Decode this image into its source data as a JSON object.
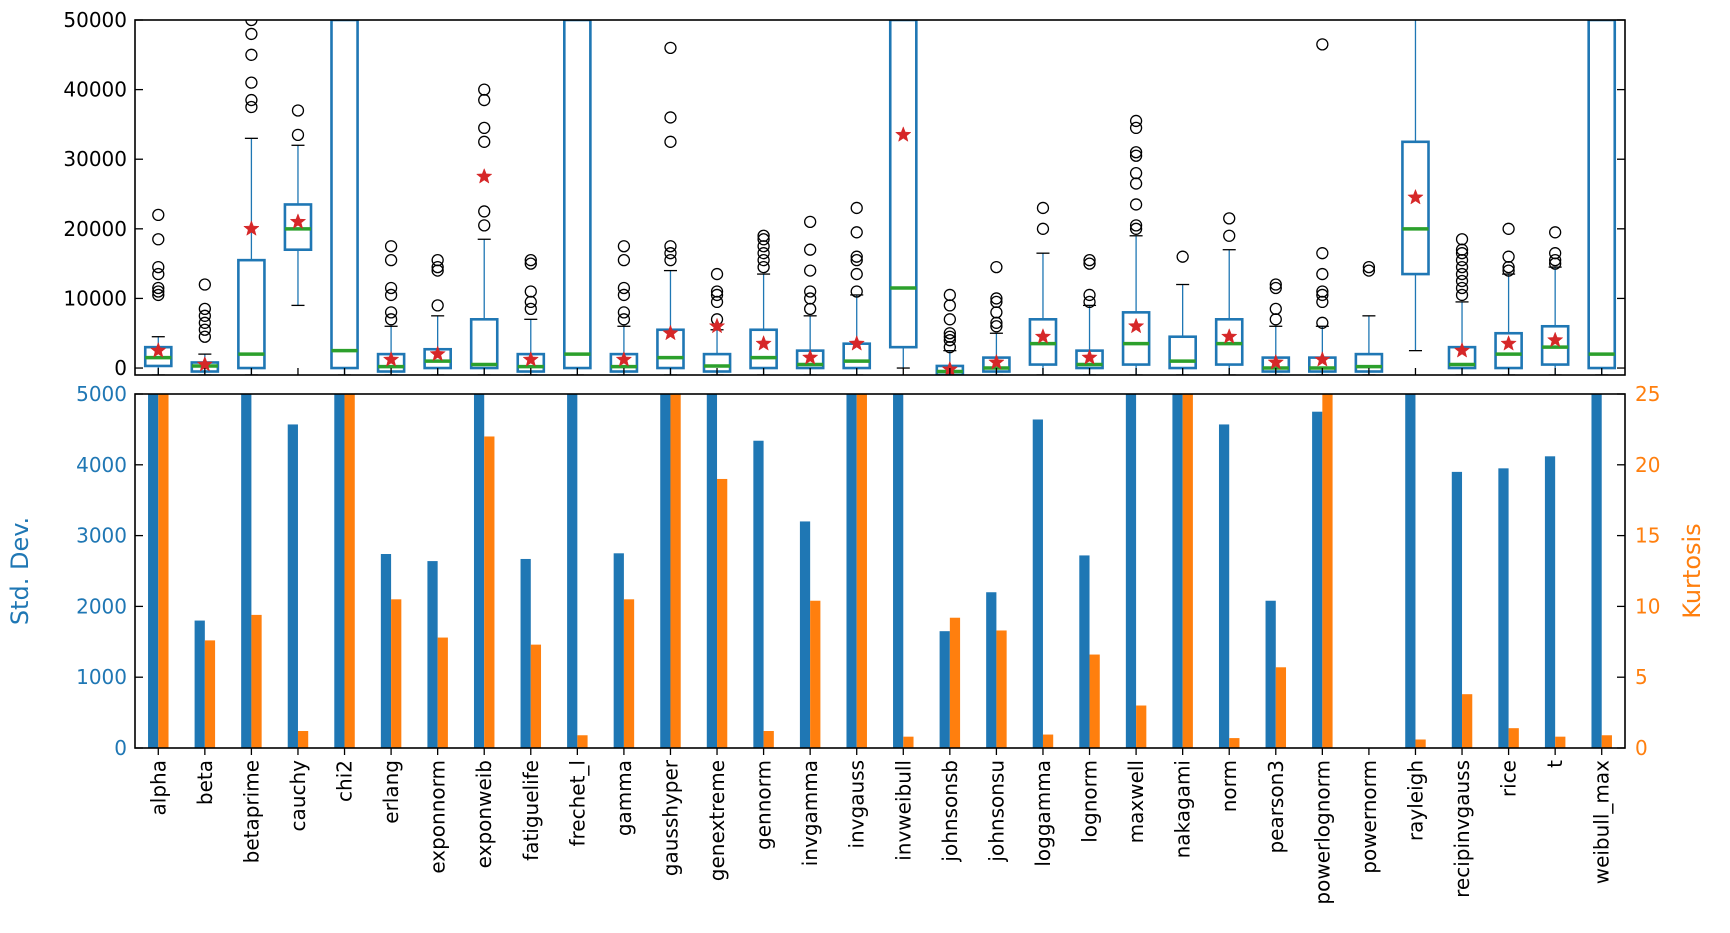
{
  "chart_data": [
    {
      "type": "box",
      "title": "",
      "ylim": [
        -1000,
        50000
      ],
      "yticks": [
        0,
        10000,
        20000,
        30000,
        40000,
        50000
      ],
      "ytick_labels": [
        "0",
        "10000",
        "20000",
        "30000",
        "40000",
        "50000"
      ],
      "colors": {
        "box": "#1f77b4",
        "median": "#2ca02c",
        "mean": "#d62728",
        "flier": "#000000"
      },
      "boxes": [
        {
          "name": "alpha",
          "min": -1000,
          "q1": 300,
          "median": 1500,
          "q3": 3000,
          "max": 4500,
          "mean": 2500,
          "fliers": [
            10500,
            11000,
            11500,
            13500,
            14500,
            18500,
            22000
          ]
        },
        {
          "name": "beta",
          "min": -1000,
          "q1": -500,
          "median": 300,
          "q3": 800,
          "max": 2000,
          "mean": 500,
          "fliers": [
            4500,
            5500,
            6500,
            7500,
            8500,
            12000
          ]
        },
        {
          "name": "betaprime",
          "min": -1000,
          "q1": 0,
          "median": 2000,
          "q3": 15500,
          "max": 33000,
          "mean": 20000,
          "fliers": [
            37500,
            38500,
            41000,
            45000,
            48000,
            50000
          ]
        },
        {
          "name": "cauchy",
          "min": 9000,
          "q1": 17000,
          "median": 20000,
          "q3": 23500,
          "max": 32000,
          "mean": 21000,
          "fliers": [
            33500,
            37000
          ]
        },
        {
          "name": "chi2",
          "min": -1000,
          "q1": 0,
          "median": 2500,
          "q3": 50000,
          "max": 50000,
          "mean": null,
          "fliers": []
        },
        {
          "name": "erlang",
          "min": -1000,
          "q1": -500,
          "median": 200,
          "q3": 2000,
          "max": 6000,
          "mean": 1200,
          "fliers": [
            7000,
            8000,
            10500,
            11500,
            15500,
            17500
          ]
        },
        {
          "name": "exponnorm",
          "min": -1000,
          "q1": 0,
          "median": 1000,
          "q3": 2700,
          "max": 7500,
          "mean": 2000,
          "fliers": [
            9000,
            14000,
            14500,
            15500
          ]
        },
        {
          "name": "exponweib",
          "min": -1000,
          "q1": 0,
          "median": 500,
          "q3": 7000,
          "max": 18500,
          "mean": 27500,
          "fliers": [
            20500,
            22500,
            32500,
            34500,
            38500,
            40000
          ]
        },
        {
          "name": "fatiguelife",
          "min": -1000,
          "q1": -500,
          "median": 200,
          "q3": 2000,
          "max": 7000,
          "mean": 1200,
          "fliers": [
            8500,
            9500,
            11000,
            15000,
            15500
          ]
        },
        {
          "name": "frechet_l",
          "min": -1000,
          "q1": 0,
          "median": 2000,
          "q3": 50000,
          "max": 50000,
          "mean": null,
          "fliers": []
        },
        {
          "name": "gamma",
          "min": -1000,
          "q1": -500,
          "median": 200,
          "q3": 2000,
          "max": 6000,
          "mean": 1200,
          "fliers": [
            7000,
            8000,
            10500,
            11500,
            15500,
            17500
          ]
        },
        {
          "name": "gausshyper",
          "min": -1000,
          "q1": 0,
          "median": 1500,
          "q3": 5500,
          "max": 14000,
          "mean": 5000,
          "fliers": [
            15500,
            16500,
            17500,
            32500,
            36000,
            46000
          ]
        },
        {
          "name": "genextreme",
          "min": -1000,
          "q1": -500,
          "median": 300,
          "q3": 2000,
          "max": 5500,
          "mean": 6000,
          "fliers": [
            7000,
            9500,
            10500,
            11000,
            13500
          ]
        },
        {
          "name": "gennorm",
          "min": -1000,
          "q1": 0,
          "median": 1500,
          "q3": 5500,
          "max": 13500,
          "mean": 3500,
          "fliers": [
            14500,
            15500,
            16500,
            17500,
            18500,
            19000
          ]
        },
        {
          "name": "invgamma",
          "min": -1000,
          "q1": 0,
          "median": 500,
          "q3": 2500,
          "max": 7500,
          "mean": 1500,
          "fliers": [
            8500,
            10000,
            11000,
            14000,
            17000,
            21000
          ]
        },
        {
          "name": "invgauss",
          "min": -1000,
          "q1": 0,
          "median": 1000,
          "q3": 3500,
          "max": 10500,
          "mean": 3500,
          "fliers": [
            11000,
            13500,
            15500,
            16000,
            19500,
            23000
          ]
        },
        {
          "name": "invweibull",
          "min": 0,
          "q1": 3000,
          "median": 11500,
          "q3": 50000,
          "max": 50000,
          "mean": 33500,
          "fliers": []
        },
        {
          "name": "johnsonsb",
          "min": -1000,
          "q1": -1000,
          "median": -500,
          "q3": 300,
          "max": 2500,
          "mean": -200,
          "fliers": [
            3000,
            4000,
            4500,
            5000,
            7000,
            9000,
            10500
          ]
        },
        {
          "name": "johnsonsu",
          "min": -1000,
          "q1": -500,
          "median": 0,
          "q3": 1500,
          "max": 5000,
          "mean": 800,
          "fliers": [
            6000,
            6500,
            8000,
            9500,
            10000,
            14500
          ]
        },
        {
          "name": "loggamma",
          "min": -1000,
          "q1": 500,
          "median": 3500,
          "q3": 7000,
          "max": 16500,
          "mean": 4500,
          "fliers": [
            20000,
            23000
          ]
        },
        {
          "name": "lognorm",
          "min": -1000,
          "q1": 0,
          "median": 500,
          "q3": 2500,
          "max": 9000,
          "mean": 1500,
          "fliers": [
            9500,
            10500,
            15000,
            15500
          ]
        },
        {
          "name": "maxwell",
          "min": -1000,
          "q1": 500,
          "median": 3500,
          "q3": 8000,
          "max": 19000,
          "mean": 6000,
          "fliers": [
            20000,
            20500,
            23500,
            26500,
            28000,
            30500,
            31000,
            34500,
            35500
          ]
        },
        {
          "name": "nakagami",
          "min": -1000,
          "q1": 0,
          "median": 1000,
          "q3": 4500,
          "max": 12000,
          "mean": null,
          "fliers": [
            16000
          ]
        },
        {
          "name": "norm",
          "min": -1000,
          "q1": 500,
          "median": 3500,
          "q3": 7000,
          "max": 17000,
          "mean": 4500,
          "fliers": [
            19000,
            21500
          ]
        },
        {
          "name": "pearson3",
          "min": -1000,
          "q1": -500,
          "median": 0,
          "q3": 1500,
          "max": 6000,
          "mean": 800,
          "fliers": [
            7000,
            8500,
            11500,
            12000
          ]
        },
        {
          "name": "powerlognorm",
          "min": -1000,
          "q1": -500,
          "median": 0,
          "q3": 1500,
          "max": 6000,
          "mean": 1200,
          "fliers": [
            6500,
            9500,
            10500,
            11000,
            13500,
            16500,
            46500
          ]
        },
        {
          "name": "powernorm",
          "min": -1000,
          "q1": -500,
          "median": 200,
          "q3": 2000,
          "max": 7500,
          "mean": null,
          "fliers": [
            14000,
            14500
          ]
        },
        {
          "name": "rayleigh",
          "min": 2500,
          "q1": 13500,
          "median": 20000,
          "q3": 32500,
          "max": 50000,
          "mean": 24500,
          "fliers": []
        },
        {
          "name": "recipinvgauss",
          "min": -1000,
          "q1": 0,
          "median": 500,
          "q3": 3000,
          "max": 9500,
          "mean": 2500,
          "fliers": [
            10500,
            11500,
            12500,
            13500,
            14500,
            15500,
            16500,
            17000,
            18500
          ]
        },
        {
          "name": "rice",
          "min": -1000,
          "q1": 0,
          "median": 2000,
          "q3": 5000,
          "max": 13500,
          "mean": 3500,
          "fliers": [
            14000,
            14500,
            16000,
            20000
          ]
        },
        {
          "name": "t",
          "min": -1000,
          "q1": 500,
          "median": 3000,
          "q3": 6000,
          "max": 14500,
          "mean": 4000,
          "fliers": [
            15000,
            15500,
            16500,
            19500
          ]
        },
        {
          "name": "weibull_max",
          "min": -1000,
          "q1": 0,
          "median": 2000,
          "q3": 50000,
          "max": 50000,
          "mean": null,
          "fliers": []
        }
      ]
    },
    {
      "type": "bar",
      "title": "",
      "xlabel": "",
      "ylabel": "Std. Dev.",
      "ylabel_right": "Kurtosis",
      "ylim": [
        0,
        5000
      ],
      "ylim_right": [
        0,
        25
      ],
      "yticks": [
        0,
        1000,
        2000,
        3000,
        4000,
        5000
      ],
      "ytick_labels": [
        "0",
        "1000",
        "2000",
        "3000",
        "4000",
        "5000"
      ],
      "yticks_right": [
        0,
        5,
        10,
        15,
        20,
        25
      ],
      "ytick_labels_right": [
        "0",
        "5",
        "10",
        "15",
        "20",
        "25"
      ],
      "categories": [
        "alpha",
        "beta",
        "betaprime",
        "cauchy",
        "chi2",
        "erlang",
        "exponnorm",
        "exponweib",
        "fatiguelife",
        "frechet_l",
        "gamma",
        "gausshyper",
        "genextreme",
        "gennorm",
        "invgamma",
        "invgauss",
        "invweibull",
        "johnsonsb",
        "johnsonsu",
        "loggamma",
        "lognorm",
        "maxwell",
        "nakagami",
        "norm",
        "pearson3",
        "powerlognorm",
        "powernorm",
        "rayleigh",
        "recipinvgauss",
        "rice",
        "t",
        "weibull_max"
      ],
      "series": [
        {
          "name": "Std. Dev.",
          "axis": "left",
          "color": "#1f77b4",
          "values": [
            5000,
            1800,
            5000,
            4570,
            5000,
            2740,
            2640,
            5000,
            2670,
            5000,
            2750,
            5000,
            5000,
            4340,
            3200,
            5000,
            5000,
            1650,
            2200,
            4640,
            2720,
            5000,
            5000,
            4570,
            2080,
            4750,
            0,
            5000,
            3900,
            3950,
            4120,
            5000
          ]
        },
        {
          "name": "Kurtosis",
          "axis": "right",
          "color": "#ff7f0e",
          "values": [
            25,
            7.6,
            9.4,
            1.2,
            25,
            10.5,
            7.8,
            22.0,
            7.3,
            0.9,
            10.5,
            25,
            19.0,
            1.2,
            10.4,
            25,
            0.8,
            9.2,
            8.3,
            0.95,
            6.6,
            3.0,
            25,
            0.7,
            5.7,
            25,
            0,
            0.6,
            3.8,
            1.4,
            0.8,
            0.9
          ]
        }
      ]
    }
  ]
}
